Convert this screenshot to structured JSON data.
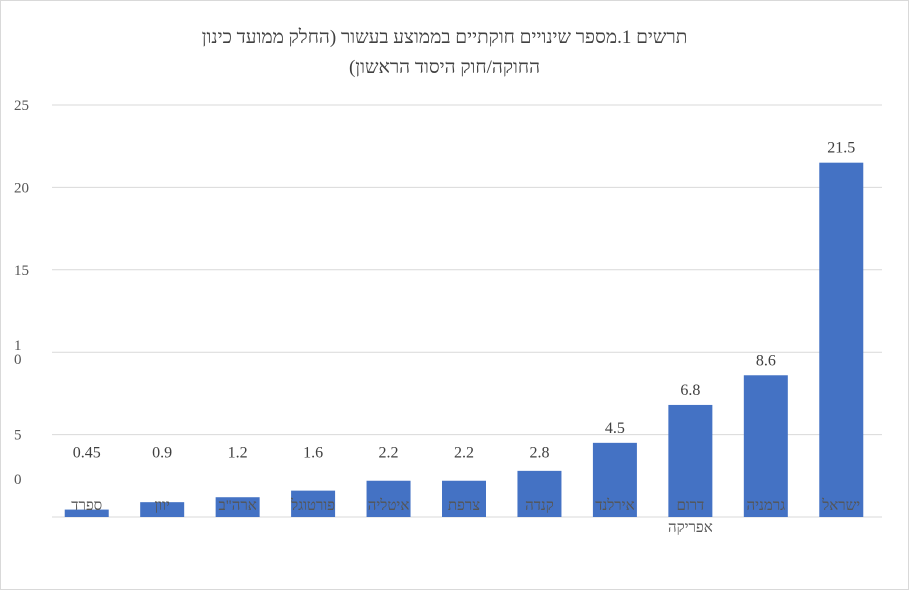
{
  "chart_data": {
    "type": "bar",
    "title": "תרשים 1.מספר שינויים חוקתיים בממוצע בעשור (החלק ממועד כינון החוקה/חוק היסוד הראשון)",
    "title_lines": [
      "תרשים 1.מספר שינויים חוקתיים בממוצע בעשור (החלק ממועד כינון",
      "החוקה/חוק היסוד הראשון)"
    ],
    "categories": [
      "ספרד",
      "יוון",
      "ארה\"ב",
      "פורטוגל",
      "איטליה",
      "צרפת",
      "קנדה",
      "אירלנד",
      "דרום אפריקה",
      "גרמניה",
      "ישראל"
    ],
    "values": [
      0.45,
      0.9,
      1.2,
      1.6,
      2.2,
      2.2,
      2.8,
      4.5,
      6.8,
      8.6,
      21.5
    ],
    "data_labels": [
      "0.45",
      "0.9",
      "1.2",
      "1.6",
      "2.2",
      "2.2",
      "2.8",
      "4.5",
      "6.8",
      "8.6",
      "21.5"
    ],
    "ylim": [
      0,
      25
    ],
    "y_ticks": [
      {
        "value": 25,
        "lines": [
          "25"
        ]
      },
      {
        "value": 20,
        "lines": [
          "20"
        ]
      },
      {
        "value": 15,
        "lines": [
          "15"
        ]
      },
      {
        "value": 10,
        "lines": [
          "1",
          "0"
        ]
      },
      {
        "value": 5,
        "lines": [
          "5"
        ]
      },
      {
        "value": 0,
        "lines": [
          "0"
        ]
      }
    ],
    "xlabel": "",
    "ylabel": "",
    "grid": true,
    "legend": "none",
    "bar_color": "#4472c4",
    "gridline_color": "#d9d9d9"
  }
}
